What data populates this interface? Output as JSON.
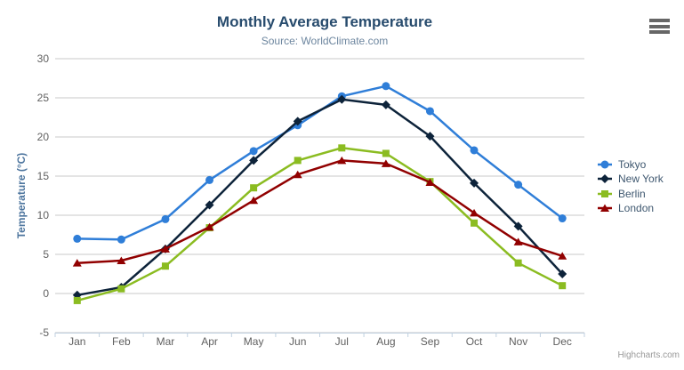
{
  "chart": {
    "title": "Monthly Average Temperature",
    "subtitle": "Source: WorldClimate.com",
    "y_axis_title": "Temperature (°C)",
    "credit": "Highcharts.com"
  },
  "chart_data": {
    "type": "line",
    "title": "Monthly Average Temperature",
    "subtitle": "Source: WorldClimate.com",
    "xlabel": "",
    "ylabel": "Temperature (°C)",
    "ylim": [
      -5,
      30
    ],
    "ytick_step": 5,
    "grid": true,
    "legend_position": "right",
    "categories": [
      "Jan",
      "Feb",
      "Mar",
      "Apr",
      "May",
      "Jun",
      "Jul",
      "Aug",
      "Sep",
      "Oct",
      "Nov",
      "Dec"
    ],
    "series": [
      {
        "name": "Tokyo",
        "color": "#2f7ed8",
        "marker": "circle",
        "values": [
          7.0,
          6.9,
          9.5,
          14.5,
          18.2,
          21.5,
          25.2,
          26.5,
          23.3,
          18.3,
          13.9,
          9.6
        ]
      },
      {
        "name": "New York",
        "color": "#0d233a",
        "marker": "diamond",
        "values": [
          -0.2,
          0.8,
          5.7,
          11.3,
          17.0,
          22.0,
          24.8,
          24.1,
          20.1,
          14.1,
          8.6,
          2.5
        ]
      },
      {
        "name": "Berlin",
        "color": "#8bbc21",
        "marker": "square",
        "values": [
          -0.9,
          0.6,
          3.5,
          8.4,
          13.5,
          17.0,
          18.6,
          17.9,
          14.3,
          9.0,
          3.9,
          1.0
        ]
      },
      {
        "name": "London",
        "color": "#910000",
        "marker": "triangle",
        "values": [
          3.9,
          4.2,
          5.7,
          8.5,
          11.9,
          15.2,
          17.0,
          16.6,
          14.2,
          10.3,
          6.6,
          4.8
        ]
      }
    ],
    "colors": {
      "grid": "#c8c8c8",
      "axis_line": "#c0d0e0",
      "axis_label": "#606060",
      "title": "#274b6d",
      "subtitle": "#6d869f",
      "axis_title": "#4d759e",
      "legend_text": "#3E576F",
      "credit": "#999999",
      "background": "#ffffff"
    }
  }
}
